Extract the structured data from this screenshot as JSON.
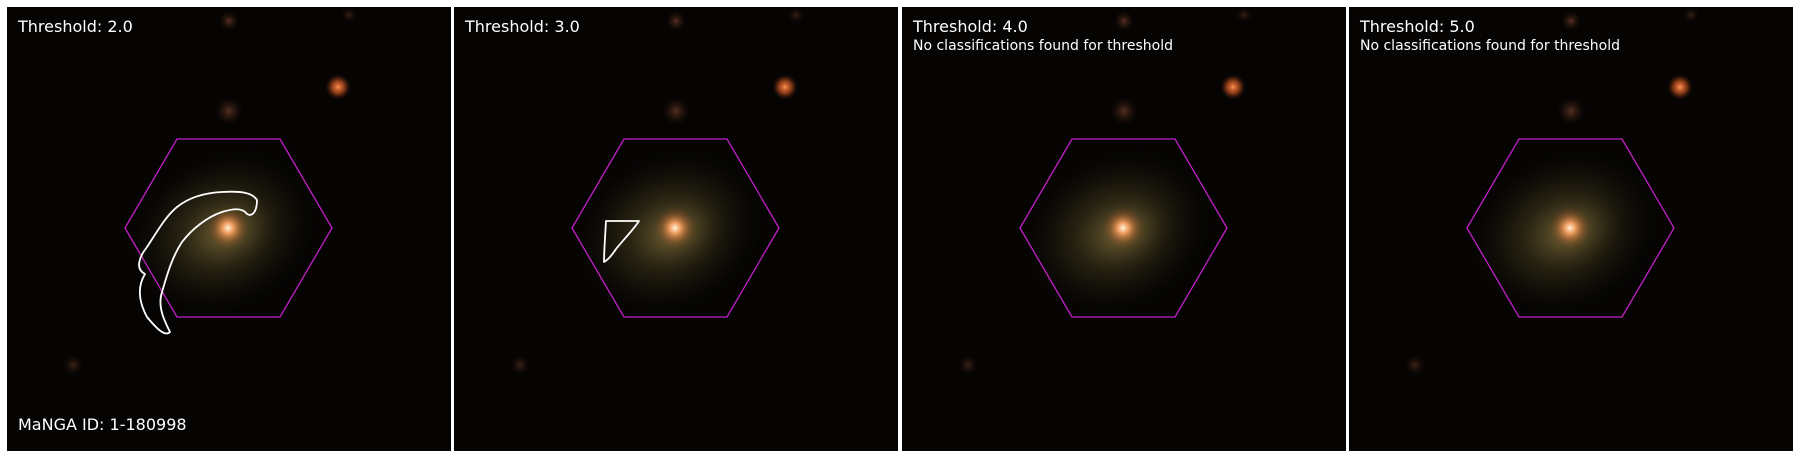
{
  "panels": [
    {
      "title": "Threshold: 2.0",
      "note": "",
      "footer": "MaNGA ID: 1-180998",
      "has_contour": true
    },
    {
      "title": "Threshold: 3.0",
      "note": "",
      "footer": "",
      "has_contour": true
    },
    {
      "title": "Threshold: 4.0",
      "note": "No classifications found for threshold",
      "footer": "",
      "has_contour": false
    },
    {
      "title": "Threshold: 5.0",
      "note": "No classifications found for threshold",
      "footer": "",
      "has_contour": false
    }
  ],
  "colors": {
    "background": "#050403",
    "hexagon": "#c21fc6",
    "contour": "#ffffff",
    "label_text": "#ffffff"
  }
}
